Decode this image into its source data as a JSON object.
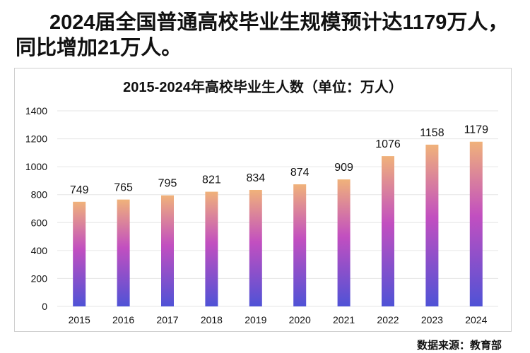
{
  "headline": "2024届全国普通高校毕业生规模预计达1179万人，同比增加21万人。",
  "source": "数据来源：教育部",
  "colors": {
    "bar_top": "#f0b27a",
    "bar_mid": "#c24fc0",
    "bar_bottom": "#4f52d6",
    "grid": "#e6e6e6",
    "text": "#111111"
  },
  "chart_data": {
    "type": "bar",
    "title": "2015-2024年高校毕业生人数（单位：万人）",
    "xlabel": "",
    "ylabel": "",
    "categories": [
      "2015",
      "2016",
      "2017",
      "2018",
      "2019",
      "2020",
      "2021",
      "2022",
      "2023",
      "2024"
    ],
    "values": [
      749,
      765,
      795,
      821,
      834,
      874,
      909,
      1076,
      1158,
      1179
    ],
    "ylim": [
      0,
      1400
    ],
    "yticks": [
      0,
      200,
      400,
      600,
      800,
      1000,
      1200,
      1400
    ],
    "grid": true,
    "data_labels": true
  }
}
